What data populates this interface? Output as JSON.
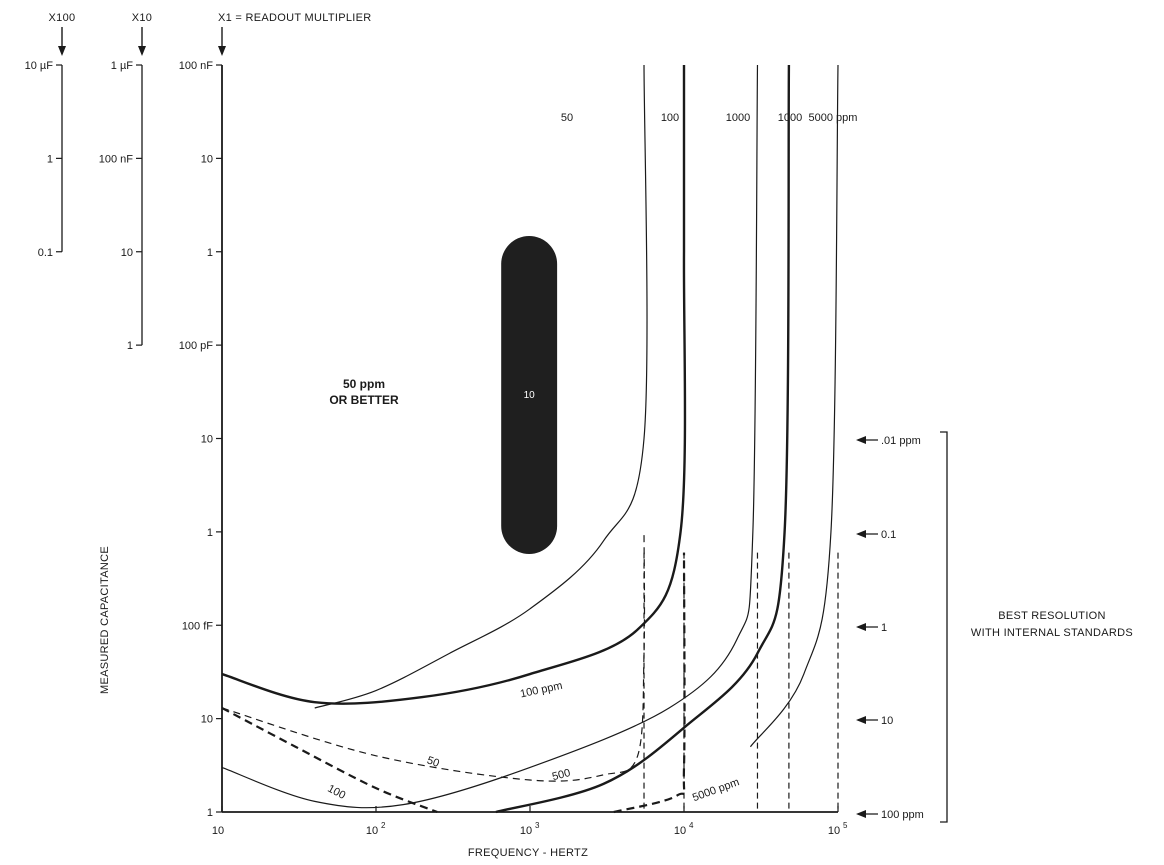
{
  "chart_data": {
    "type": "line",
    "xlabel": "FREQUENCY - HERTZ",
    "ylabel": "MEASURED CAPACITANCE",
    "x_scale": "log",
    "y_scale": "log",
    "xlim": [
      10,
      100000
    ],
    "x_ticks": [
      "10",
      "10",
      "10",
      "10",
      "10"
    ],
    "x_tick_exponents": [
      "",
      "2",
      "3",
      "4",
      "5"
    ],
    "axes": [
      {
        "multiplier": "X100",
        "ticks": [
          "10 µF",
          "1",
          "0.1",
          "",
          "",
          "",
          "",
          "",
          ""
        ]
      },
      {
        "multiplier": "X10",
        "ticks": [
          "1 µF",
          "100 nF",
          "10",
          "1",
          "",
          "",
          "",
          "",
          ""
        ]
      },
      {
        "multiplier": "X1 = READOUT MULTIPLIER",
        "ticks": [
          "100 nF",
          "10",
          "1",
          "100 pF",
          "10",
          "1",
          "100 fF",
          "10",
          "1"
        ]
      }
    ],
    "ylim_main": [
      "1 fF",
      "100 nF"
    ],
    "series": [
      {
        "name": "50 ppm",
        "style": "solid-thin",
        "label": "50",
        "points": [
          [
            40,
            0.013
          ],
          [
            100,
            0.02
          ],
          [
            300,
            0.05
          ],
          [
            1000,
            0.15
          ],
          [
            3000,
            0.8
          ],
          [
            5500,
            10
          ],
          [
            5500,
            100000
          ]
        ]
      },
      {
        "name": "100 ppm",
        "style": "solid-thick",
        "label": "100 ppm",
        "points": [
          [
            10,
            0.03
          ],
          [
            40,
            0.015
          ],
          [
            200,
            0.017
          ],
          [
            1000,
            0.03
          ],
          [
            5000,
            0.09
          ],
          [
            9500,
            1
          ],
          [
            10000,
            1000
          ],
          [
            10000,
            100000
          ]
        ]
      },
      {
        "name": "500 ppm",
        "style": "solid-thin",
        "label": "500",
        "points": [
          [
            10,
            0.003
          ],
          [
            40,
            0.0013
          ],
          [
            150,
            0.0012
          ],
          [
            1000,
            0.003
          ],
          [
            8000,
            0.013
          ],
          [
            22000,
            0.07
          ],
          [
            28000,
            1
          ],
          [
            30000,
            100000
          ]
        ]
      },
      {
        "name": "1000 ppm",
        "style": "solid-thick",
        "label": "1000",
        "points": [
          [
            600,
            0.001
          ],
          [
            3000,
            0.002
          ],
          [
            10000,
            0.008
          ],
          [
            30000,
            0.05
          ],
          [
            45000,
            1
          ],
          [
            48000,
            100000
          ]
        ]
      },
      {
        "name": "5000 ppm",
        "style": "solid-thin",
        "label": "5000 ppm",
        "points": [
          [
            27000,
            0.005
          ],
          [
            60000,
            0.03
          ],
          [
            90000,
            1
          ],
          [
            100000,
            100000
          ]
        ]
      },
      {
        "name": "50 (dashed)",
        "style": "dashed-thin",
        "label": "50",
        "points": [
          [
            10,
            0.013
          ],
          [
            100,
            0.004
          ],
          [
            1000,
            0.0022
          ],
          [
            3000,
            0.0025
          ],
          [
            5000,
            0.004
          ],
          [
            5500,
            0.05
          ],
          [
            5500,
            1
          ]
        ]
      },
      {
        "name": "100 (dashed)",
        "style": "dashed-thick",
        "label": "100",
        "points": [
          [
            10,
            0.013
          ],
          [
            30,
            0.005
          ],
          [
            100,
            0.0018
          ],
          [
            250,
            0.001
          ]
        ]
      },
      {
        "name": "100 (dashed, right)",
        "style": "dashed-thick",
        "label": "",
        "points": [
          [
            3500,
            0.001
          ],
          [
            9000,
            0.0015
          ],
          [
            10000,
            0.003
          ],
          [
            10000,
            0.6
          ]
        ]
      }
    ],
    "drop_lines_at_x": [
      5500,
      10000,
      30000,
      48000,
      100000
    ],
    "region_label": [
      "50 ppm",
      "OR BETTER"
    ],
    "shaded_region": {
      "label": "10",
      "x_range": [
        650,
        1500
      ]
    },
    "resolution_scale": {
      "title": [
        "BEST RESOLUTION",
        "WITH INTERNAL STANDARDS"
      ],
      "labels": [
        ".01 ppm",
        "0.1",
        "1",
        "10",
        "100 ppm"
      ]
    }
  }
}
